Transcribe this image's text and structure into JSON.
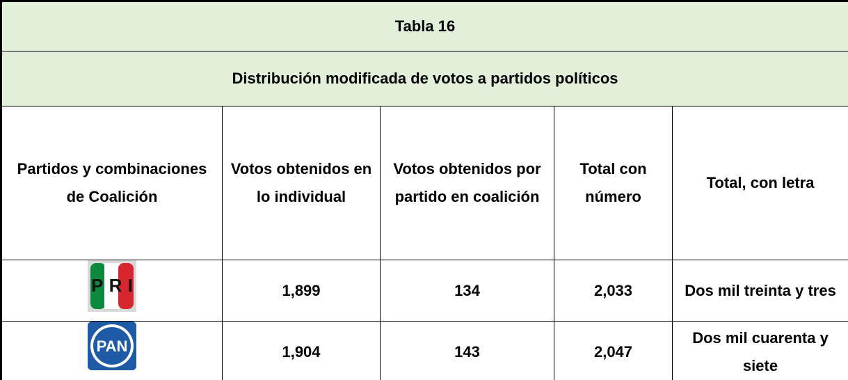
{
  "table": {
    "title": "Tabla 16",
    "subtitle": "Distribución modificada de votos a partidos políticos",
    "headers": [
      "Partidos y combinaciones de Coalición",
      "Votos obtenidos en lo individual",
      "Votos obtenidos por partido en coalición",
      "Total con número",
      "Total, con letra"
    ],
    "rows": [
      [
        "PRI",
        "1,899",
        "134",
        "2,033",
        "Dos mil treinta y tres"
      ],
      [
        "PAN",
        "1,904",
        "143",
        "2,047",
        "Dos mil cuarenta y siete"
      ]
    ]
  }
}
